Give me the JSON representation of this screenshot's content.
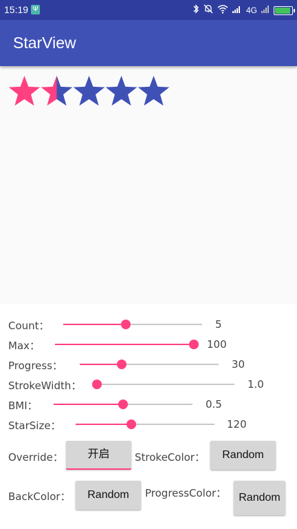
{
  "status_bar": {
    "time": "15:19",
    "usb_icon": "usb-icon",
    "network": "4G",
    "icons": [
      "bluetooth-icon",
      "mute-icon",
      "wifi-icon",
      "signal-icon",
      "battery-icon"
    ]
  },
  "app_bar": {
    "title": "StarView"
  },
  "star_view": {
    "count": 5,
    "progress_fraction": 0.3,
    "fill_color": "#ff4081",
    "back_color": "#3f51b5"
  },
  "controls": {
    "sliders": [
      {
        "label": "Count：",
        "value": "5",
        "progress": 0.45
      },
      {
        "label": "Max：",
        "value": "100",
        "progress": 1.0
      },
      {
        "label": "Progress：",
        "value": "30",
        "progress": 0.3
      },
      {
        "label": "StrokeWidth：",
        "value": "1.0",
        "progress": 0.0
      },
      {
        "label": "BMI：",
        "value": "0.5",
        "progress": 0.5
      },
      {
        "label": "StarSize：",
        "value": "120",
        "progress": 0.4
      }
    ],
    "override_label": "Override：",
    "override_button": "开启",
    "stroke_color_label": "StrokeColor：",
    "stroke_color_button": "Random",
    "back_color_label": "BackColor：",
    "back_color_button": "Random",
    "progress_color_label": "ProgressColor：",
    "progress_color_button": "Random"
  },
  "accent_color": "#ff4081"
}
